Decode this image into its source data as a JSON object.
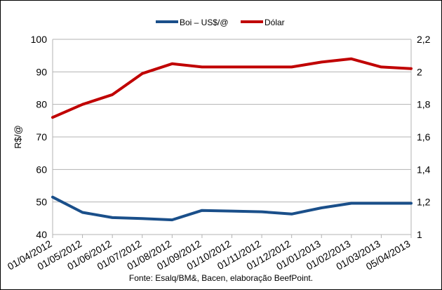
{
  "chart_data": {
    "type": "line",
    "x": [
      "01/04/2012",
      "01/05/2012",
      "01/06/2012",
      "01/07/2012",
      "01/08/2012",
      "01/09/2012",
      "01/10/2012",
      "01/11/2012",
      "01/12/2012",
      "01/01/2013",
      "01/02/2013",
      "01/03/2013",
      "05/04/2013"
    ],
    "series": [
      {
        "name": "Boi – US$/@",
        "axis": "left",
        "color": "#1a4f8a",
        "values": [
          51.5,
          46.8,
          45.2,
          44.9,
          44.5,
          47.4,
          47.2,
          47.0,
          46.3,
          48.2,
          49.6,
          49.6,
          49.6
        ]
      },
      {
        "name": "Dólar",
        "axis": "right",
        "color": "#c00000",
        "values": [
          1.72,
          1.8,
          1.86,
          1.99,
          2.05,
          2.03,
          2.03,
          2.03,
          2.03,
          2.06,
          2.08,
          2.03,
          2.02
        ]
      }
    ],
    "ylabel": "R$/@",
    "ylim": [
      40,
      100
    ],
    "yticks": [
      "40",
      "50",
      "60",
      "70",
      "80",
      "90",
      "100"
    ],
    "y2lim": [
      1.0,
      2.2
    ],
    "y2ticks": [
      "1",
      "1,2",
      "1,4",
      "1,6",
      "1,8",
      "2",
      "2,2"
    ],
    "grid": true,
    "legend": "top-center",
    "source": "Fonte: Esalq/BM&, Bacen, elaboração BeefPoint."
  }
}
